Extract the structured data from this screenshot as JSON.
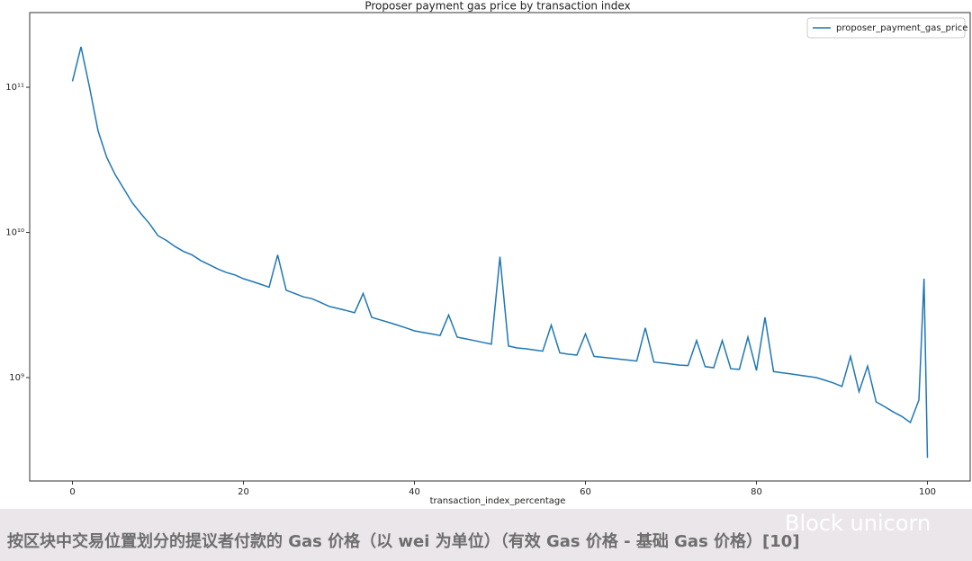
{
  "chart_data": {
    "type": "line",
    "title": "Proposer payment gas price by transaction index",
    "x_label": "transaction_index_percentage",
    "x": [
      0,
      1,
      2,
      3,
      4,
      5,
      6,
      7,
      8,
      9,
      10,
      11,
      12,
      13,
      14,
      15,
      16,
      17,
      18,
      19,
      20,
      21,
      22,
      23,
      24,
      25,
      26,
      27,
      28,
      29,
      30,
      31,
      32,
      33,
      34,
      35,
      36,
      37,
      38,
      39,
      40,
      41,
      42,
      43,
      44,
      45,
      46,
      47,
      48,
      49,
      50,
      51,
      52,
      53,
      54,
      55,
      56,
      57,
      58,
      59,
      60,
      61,
      62,
      63,
      64,
      65,
      66,
      67,
      68,
      69,
      70,
      71,
      72,
      73,
      74,
      75,
      76,
      77,
      78,
      79,
      80,
      81,
      82,
      83,
      84,
      85,
      86,
      87,
      88,
      89,
      90,
      91,
      92,
      93,
      94,
      95,
      96,
      97,
      98,
      99,
      99.6,
      100
    ],
    "series": [
      {
        "name": "proposer_payment_gas_price",
        "color": "#1f77b4",
        "values": [
          110000000000,
          190000000000,
          100000000000,
          50000000000,
          33000000000,
          25000000000,
          20000000000,
          16000000000,
          13500000000,
          11500000000,
          9500000000,
          8800000000,
          8000000000,
          7400000000,
          7000000000,
          6400000000,
          6000000000,
          5600000000,
          5300000000,
          5100000000,
          4800000000,
          4600000000,
          4400000000,
          4200000000,
          7000000000,
          4000000000,
          3800000000,
          3600000000,
          3500000000,
          3300000000,
          3100000000,
          3000000000,
          2900000000,
          2800000000,
          3800000000,
          2600000000,
          2500000000,
          2400000000,
          2300000000,
          2200000000,
          2100000000,
          2050000000,
          2000000000,
          1950000000,
          2700000000,
          1900000000,
          1850000000,
          1800000000,
          1750000000,
          1700000000,
          6800000000,
          1650000000,
          1600000000,
          1580000000,
          1550000000,
          1520000000,
          2300000000,
          1480000000,
          1450000000,
          1430000000,
          2000000000,
          1400000000,
          1380000000,
          1360000000,
          1340000000,
          1320000000,
          1300000000,
          2200000000,
          1280000000,
          1260000000,
          1240000000,
          1220000000,
          1210000000,
          1800000000,
          1190000000,
          1170000000,
          1800000000,
          1150000000,
          1140000000,
          1900000000,
          1120000000,
          2600000000,
          1100000000,
          1080000000,
          1060000000,
          1040000000,
          1020000000,
          1000000000,
          960000000,
          920000000,
          870000000,
          1400000000,
          800000000,
          1200000000,
          680000000,
          630000000,
          580000000,
          540000000,
          490000000,
          700000000,
          4800000000,
          280000000
        ]
      }
    ],
    "xlim": [
      -5,
      105
    ],
    "xticks": [
      0,
      20,
      40,
      60,
      80,
      100
    ],
    "ylim": [
      194000000,
      327000000000
    ],
    "log_y": true,
    "yticks": [
      {
        "value": 1000000000,
        "label": "10⁹"
      },
      {
        "value": 10000000000,
        "label": "10¹⁰"
      },
      {
        "value": 100000000000,
        "label": "10¹¹"
      }
    ],
    "legend": "upper right"
  },
  "caption": "按区块中交易位置划分的提议者付款的 Gas 价格（以 wei 为单位）（有效 Gas 价格 - 基础 Gas 价格）[10]",
  "watermark": "Block unicorn"
}
